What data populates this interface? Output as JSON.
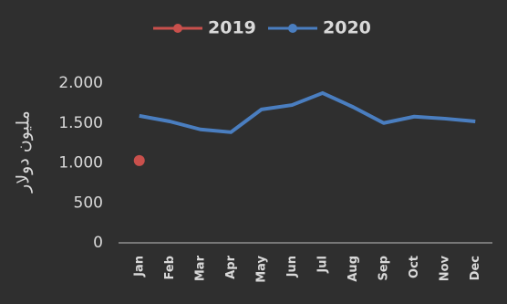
{
  "chart_data": {
    "type": "line",
    "y_label": "مليون دولار",
    "categories": [
      "Jan",
      "Feb",
      "Mar",
      "Apr",
      "May",
      "Jun",
      "Jul",
      "Aug",
      "Sep",
      "Oct",
      "Nov",
      "Dec"
    ],
    "series": [
      {
        "name": "2019",
        "color": "#c9504c",
        "values": [
          1030,
          null,
          null,
          null,
          null,
          null,
          null,
          null,
          null,
          null,
          null,
          null
        ]
      },
      {
        "name": "2020",
        "color": "#4a7ec0",
        "values": [
          1590,
          1520,
          1420,
          1385,
          1670,
          1725,
          1875,
          1700,
          1500,
          1580,
          1555,
          1520
        ]
      }
    ],
    "ylim": [
      0,
      2000
    ],
    "yticks": [
      0,
      500,
      {
        "value": 1000,
        "label": "1.000"
      },
      {
        "value": 1500,
        "label": "1.500"
      },
      {
        "value": 2000,
        "label": "2.000"
      }
    ],
    "grid": false
  }
}
